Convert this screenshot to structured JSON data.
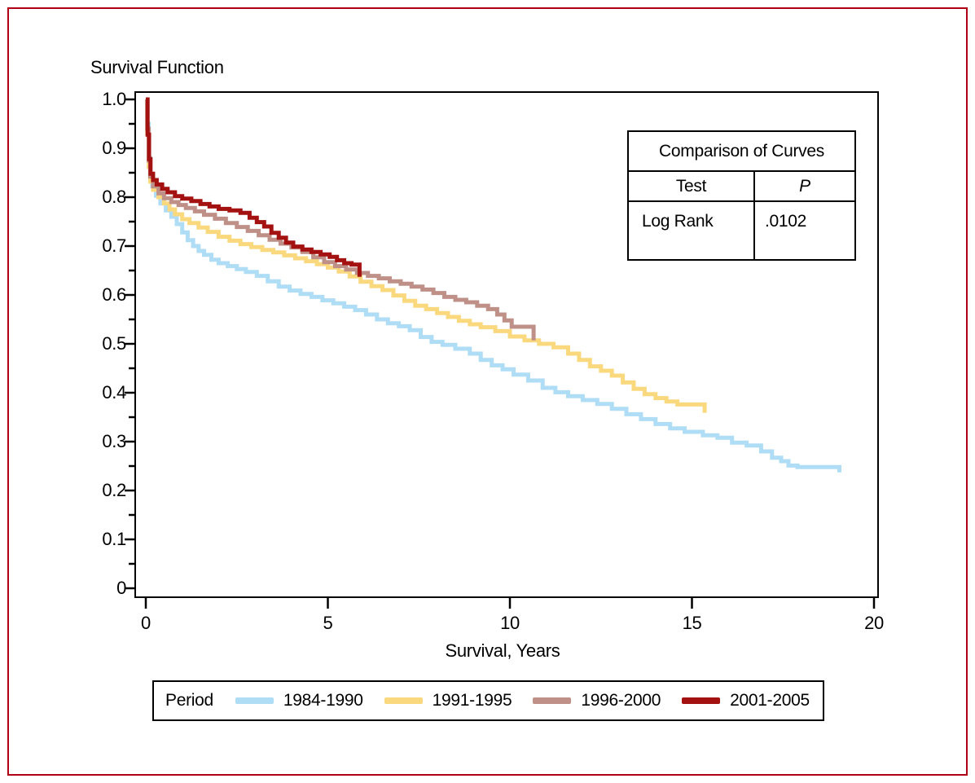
{
  "figure": {
    "border_color": "#B00018",
    "background_color": "#FFFFFF"
  },
  "chart_data": {
    "type": "line",
    "variant": "kaplan-meier-survival-steps",
    "title": "Survival Function",
    "xlabel": "Survival, Years",
    "ylabel": "",
    "xlim": [
      0,
      20
    ],
    "ylim": [
      0,
      1.0
    ],
    "grid": false,
    "axis_color": "#000000",
    "xticks": {
      "values": [
        0,
        5,
        10,
        15,
        20
      ],
      "labels": [
        "0",
        "5",
        "10",
        "15",
        "20"
      ]
    },
    "yticks": {
      "values": [
        0,
        0.1,
        0.2,
        0.3,
        0.4,
        0.5,
        0.6,
        0.7,
        0.8,
        0.9,
        1.0
      ],
      "labels": [
        "0",
        "0.1",
        "0.2",
        "0.3",
        "0.4",
        "0.5",
        "0.6",
        "0.7",
        "0.8",
        "0.9",
        "1.0"
      ],
      "minor_values": [
        0.05,
        0.15,
        0.25,
        0.35,
        0.45,
        0.55,
        0.65,
        0.75,
        0.85,
        0.95
      ]
    },
    "legend_title": "Period",
    "legend_position": "bottom",
    "series": [
      {
        "name": "1984-1990",
        "color": "#AFDDF6",
        "points": [
          [
            0,
            1.0
          ],
          [
            0.04,
            0.95
          ],
          [
            0.08,
            0.88
          ],
          [
            0.12,
            0.845
          ],
          [
            0.18,
            0.822
          ],
          [
            0.28,
            0.803
          ],
          [
            0.4,
            0.787
          ],
          [
            0.55,
            0.773
          ],
          [
            0.7,
            0.76
          ],
          [
            0.85,
            0.745
          ],
          [
            1.0,
            0.728
          ],
          [
            1.15,
            0.712
          ],
          [
            1.3,
            0.7
          ],
          [
            1.45,
            0.69
          ],
          [
            1.6,
            0.682
          ],
          [
            1.8,
            0.672
          ],
          [
            2.0,
            0.665
          ],
          [
            2.25,
            0.659
          ],
          [
            2.5,
            0.653
          ],
          [
            2.75,
            0.647
          ],
          [
            3.05,
            0.639
          ],
          [
            3.35,
            0.628
          ],
          [
            3.65,
            0.617
          ],
          [
            3.95,
            0.609
          ],
          [
            4.25,
            0.602
          ],
          [
            4.55,
            0.596
          ],
          [
            4.85,
            0.589
          ],
          [
            5.15,
            0.583
          ],
          [
            5.45,
            0.576
          ],
          [
            5.75,
            0.569
          ],
          [
            6.05,
            0.56
          ],
          [
            6.35,
            0.55
          ],
          [
            6.65,
            0.542
          ],
          [
            6.95,
            0.536
          ],
          [
            7.25,
            0.528
          ],
          [
            7.55,
            0.514
          ],
          [
            7.85,
            0.504
          ],
          [
            8.15,
            0.498
          ],
          [
            8.5,
            0.49
          ],
          [
            8.9,
            0.48
          ],
          [
            9.2,
            0.467
          ],
          [
            9.5,
            0.456
          ],
          [
            9.8,
            0.448
          ],
          [
            10.1,
            0.437
          ],
          [
            10.5,
            0.425
          ],
          [
            10.9,
            0.41
          ],
          [
            11.25,
            0.401
          ],
          [
            11.6,
            0.393
          ],
          [
            12.0,
            0.385
          ],
          [
            12.4,
            0.377
          ],
          [
            12.8,
            0.367
          ],
          [
            13.2,
            0.356
          ],
          [
            13.6,
            0.346
          ],
          [
            14.0,
            0.336
          ],
          [
            14.4,
            0.327
          ],
          [
            14.8,
            0.32
          ],
          [
            15.3,
            0.313
          ],
          [
            15.7,
            0.308
          ],
          [
            16.1,
            0.298
          ],
          [
            16.5,
            0.292
          ],
          [
            16.9,
            0.28
          ],
          [
            17.2,
            0.267
          ],
          [
            17.45,
            0.26
          ],
          [
            17.65,
            0.251
          ],
          [
            17.9,
            0.248
          ],
          [
            19.05,
            0.248
          ],
          [
            19.05,
            0.237
          ]
        ]
      },
      {
        "name": "1991-1995",
        "color": "#FAD87E",
        "points": [
          [
            0,
            1.0
          ],
          [
            0.04,
            0.93
          ],
          [
            0.08,
            0.862
          ],
          [
            0.12,
            0.832
          ],
          [
            0.2,
            0.815
          ],
          [
            0.35,
            0.8
          ],
          [
            0.5,
            0.787
          ],
          [
            0.65,
            0.775
          ],
          [
            0.8,
            0.765
          ],
          [
            1.0,
            0.755
          ],
          [
            1.2,
            0.747
          ],
          [
            1.45,
            0.738
          ],
          [
            1.7,
            0.729
          ],
          [
            2.0,
            0.719
          ],
          [
            2.3,
            0.711
          ],
          [
            2.6,
            0.704
          ],
          [
            2.9,
            0.698
          ],
          [
            3.2,
            0.692
          ],
          [
            3.5,
            0.687
          ],
          [
            3.8,
            0.681
          ],
          [
            4.1,
            0.675
          ],
          [
            4.4,
            0.669
          ],
          [
            4.7,
            0.663
          ],
          [
            5.0,
            0.656
          ],
          [
            5.3,
            0.648
          ],
          [
            5.6,
            0.638
          ],
          [
            5.9,
            0.627
          ],
          [
            6.2,
            0.618
          ],
          [
            6.5,
            0.61
          ],
          [
            6.8,
            0.599
          ],
          [
            7.1,
            0.588
          ],
          [
            7.4,
            0.578
          ],
          [
            7.7,
            0.571
          ],
          [
            8.0,
            0.563
          ],
          [
            8.3,
            0.555
          ],
          [
            8.6,
            0.547
          ],
          [
            8.9,
            0.54
          ],
          [
            9.2,
            0.534
          ],
          [
            9.6,
            0.526
          ],
          [
            10.0,
            0.515
          ],
          [
            10.4,
            0.507
          ],
          [
            10.8,
            0.5
          ],
          [
            11.2,
            0.493
          ],
          [
            11.6,
            0.48
          ],
          [
            11.9,
            0.467
          ],
          [
            12.2,
            0.454
          ],
          [
            12.5,
            0.445
          ],
          [
            12.8,
            0.435
          ],
          [
            13.1,
            0.421
          ],
          [
            13.4,
            0.408
          ],
          [
            13.7,
            0.397
          ],
          [
            14.0,
            0.389
          ],
          [
            14.3,
            0.382
          ],
          [
            14.6,
            0.376
          ],
          [
            15.35,
            0.374
          ],
          [
            15.35,
            0.359
          ]
        ]
      },
      {
        "name": "1996-2000",
        "color": "#BE9088",
        "points": [
          [
            0,
            1.0
          ],
          [
            0.04,
            0.94
          ],
          [
            0.08,
            0.875
          ],
          [
            0.12,
            0.842
          ],
          [
            0.2,
            0.822
          ],
          [
            0.35,
            0.808
          ],
          [
            0.5,
            0.798
          ],
          [
            0.7,
            0.79
          ],
          [
            0.9,
            0.784
          ],
          [
            1.1,
            0.778
          ],
          [
            1.35,
            0.771
          ],
          [
            1.6,
            0.764
          ],
          [
            1.9,
            0.756
          ],
          [
            2.2,
            0.747
          ],
          [
            2.5,
            0.739
          ],
          [
            2.8,
            0.731
          ],
          [
            3.1,
            0.722
          ],
          [
            3.4,
            0.713
          ],
          [
            3.7,
            0.705
          ],
          [
            4.0,
            0.697
          ],
          [
            4.3,
            0.688
          ],
          [
            4.6,
            0.677
          ],
          [
            4.9,
            0.667
          ],
          [
            5.2,
            0.659
          ],
          [
            5.5,
            0.652
          ],
          [
            5.8,
            0.645
          ],
          [
            6.1,
            0.639
          ],
          [
            6.4,
            0.634
          ],
          [
            6.7,
            0.628
          ],
          [
            7.0,
            0.623
          ],
          [
            7.3,
            0.617
          ],
          [
            7.6,
            0.611
          ],
          [
            7.9,
            0.604
          ],
          [
            8.2,
            0.596
          ],
          [
            8.5,
            0.59
          ],
          [
            8.8,
            0.585
          ],
          [
            9.1,
            0.578
          ],
          [
            9.4,
            0.571
          ],
          [
            9.65,
            0.56
          ],
          [
            9.85,
            0.548
          ],
          [
            10.05,
            0.535
          ],
          [
            10.65,
            0.532
          ],
          [
            10.65,
            0.507
          ]
        ]
      },
      {
        "name": "2001-2005",
        "color": "#A31111",
        "points": [
          [
            0,
            1.0
          ],
          [
            0.05,
            0.928
          ],
          [
            0.09,
            0.878
          ],
          [
            0.13,
            0.848
          ],
          [
            0.2,
            0.835
          ],
          [
            0.3,
            0.826
          ],
          [
            0.45,
            0.817
          ],
          [
            0.6,
            0.81
          ],
          [
            0.8,
            0.802
          ],
          [
            1.0,
            0.797
          ],
          [
            1.25,
            0.792
          ],
          [
            1.5,
            0.786
          ],
          [
            1.75,
            0.781
          ],
          [
            2.0,
            0.776
          ],
          [
            2.3,
            0.773
          ],
          [
            2.6,
            0.768
          ],
          [
            2.85,
            0.758
          ],
          [
            3.05,
            0.749
          ],
          [
            3.25,
            0.74
          ],
          [
            3.45,
            0.727
          ],
          [
            3.65,
            0.717
          ],
          [
            3.85,
            0.707
          ],
          [
            4.05,
            0.699
          ],
          [
            4.3,
            0.693
          ],
          [
            4.55,
            0.688
          ],
          [
            4.8,
            0.683
          ],
          [
            5.05,
            0.678
          ],
          [
            5.25,
            0.671
          ],
          [
            5.45,
            0.665
          ],
          [
            5.65,
            0.662
          ],
          [
            5.87,
            0.659
          ],
          [
            5.87,
            0.637
          ]
        ]
      }
    ]
  },
  "stats_table": {
    "title": "Comparison of Curves",
    "columns": [
      "Test",
      "P"
    ],
    "rows": [
      [
        "Log Rank",
        ".0102"
      ]
    ]
  }
}
